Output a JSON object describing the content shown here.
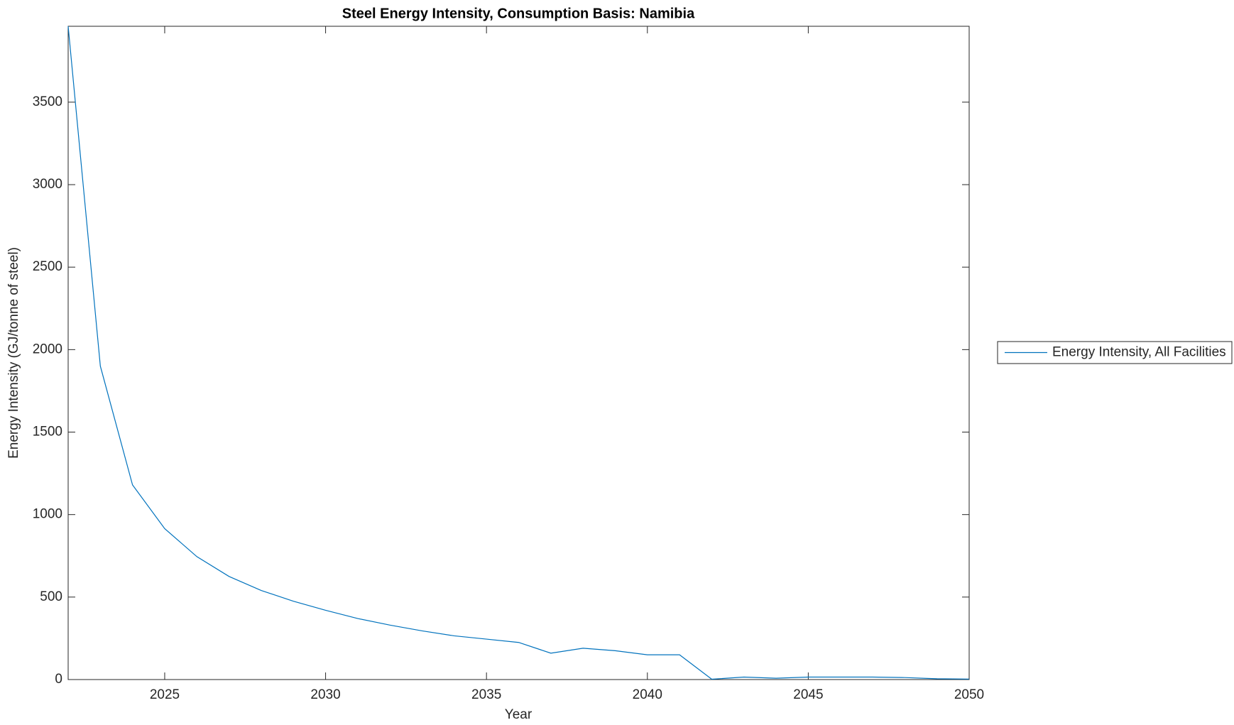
{
  "chart_data": {
    "type": "line",
    "title": "Steel Energy Intensity, Consumption Basis: Namibia",
    "xlabel": "Year",
    "ylabel": "Energy Intensity (GJ/tonne of steel)",
    "x": [
      2022,
      2023,
      2024,
      2025,
      2026,
      2027,
      2028,
      2029,
      2030,
      2031,
      2032,
      2033,
      2034,
      2035,
      2036,
      2037,
      2038,
      2039,
      2040,
      2041,
      2042,
      2043,
      2044,
      2045,
      2046,
      2047,
      2048,
      2049,
      2050
    ],
    "series": [
      {
        "name": "Energy Intensity, All Facilities",
        "color": "#0072bd",
        "values": [
          3960,
          1900,
          1180,
          915,
          745,
          625,
          540,
          475,
          420,
          370,
          330,
          295,
          265,
          245,
          225,
          160,
          190,
          175,
          150,
          150,
          2,
          15,
          8,
          15,
          15,
          15,
          12,
          5,
          3
        ]
      }
    ],
    "xlim": [
      2022,
      2050
    ],
    "xticks": [
      2025,
      2030,
      2035,
      2040,
      2045,
      2050
    ],
    "ylim": [
      0,
      3960
    ],
    "yticks": [
      0,
      500,
      1000,
      1500,
      2000,
      2500,
      3000,
      3500
    ],
    "grid": false,
    "legend": "outside-right"
  }
}
